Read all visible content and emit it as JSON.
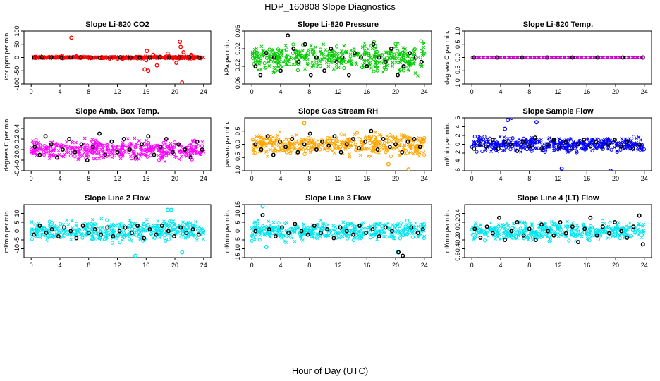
{
  "figure": {
    "title": "HDP_160808  Slope Diagnostics",
    "xlabel": "Hour of Day (UTC)"
  },
  "chart_data": [
    {
      "type": "scatter",
      "title": "Slope Li-820 CO2",
      "ylabel": "Licor ppm per min.",
      "color": "#ff0000",
      "xlim": [
        -1,
        25
      ],
      "ylim": [
        -100,
        100
      ],
      "yticks": [
        -100,
        -50,
        0,
        50,
        100
      ],
      "xticks": [
        0,
        4,
        8,
        12,
        16,
        20,
        24
      ],
      "spread": 0.04,
      "outliers": [
        [
          5.6,
          75
        ],
        [
          15.8,
          -45
        ],
        [
          16.1,
          25
        ],
        [
          16.3,
          -50
        ],
        [
          16.0,
          -10
        ],
        [
          17.0,
          10
        ],
        [
          20.7,
          60
        ],
        [
          20.8,
          40
        ],
        [
          21.0,
          -95
        ],
        [
          21.2,
          20
        ],
        [
          17.5,
          -30
        ],
        [
          19.0,
          15
        ],
        [
          20.2,
          -20
        ],
        [
          22.3,
          10
        ]
      ],
      "black": [
        [
          0.4,
          0
        ],
        [
          1.5,
          1
        ],
        [
          2.8,
          0
        ],
        [
          4.2,
          -1
        ],
        [
          5.5,
          0
        ],
        [
          6.9,
          1
        ],
        [
          8.3,
          0
        ],
        [
          9.6,
          -1
        ],
        [
          11.0,
          0
        ],
        [
          12.4,
          1
        ],
        [
          13.8,
          0
        ],
        [
          15.1,
          -1
        ],
        [
          16.5,
          0
        ],
        [
          17.9,
          1
        ],
        [
          19.2,
          0
        ],
        [
          20.6,
          0
        ],
        [
          22.0,
          1
        ],
        [
          23.4,
          -1
        ]
      ]
    },
    {
      "type": "scatter",
      "title": "Slope Li-820 Pressure",
      "ylabel": "kPa per min.",
      "color": "#00cc00",
      "xlim": [
        -1,
        25
      ],
      "ylim": [
        -0.06,
        0.06
      ],
      "yticks": [
        -0.06,
        -0.02,
        0.02,
        0.06
      ],
      "ytickLabels": [
        "-0.06",
        "-0.02",
        "0.02",
        "0.06"
      ],
      "xticks": [
        0,
        4,
        8,
        12,
        16,
        20,
        24
      ],
      "spread": 0.45,
      "outliers": [],
      "black": [
        [
          0.5,
          -0.02
        ],
        [
          1.2,
          -0.04
        ],
        [
          2.0,
          0.01
        ],
        [
          3.1,
          0.0
        ],
        [
          4.0,
          -0.03
        ],
        [
          5.0,
          0.05
        ],
        [
          5.8,
          0.02
        ],
        [
          6.5,
          -0.01
        ],
        [
          7.4,
          0.03
        ],
        [
          8.2,
          -0.04
        ],
        [
          9.0,
          0.0
        ],
        [
          10.1,
          -0.03
        ],
        [
          11.0,
          0.02
        ],
        [
          11.8,
          -0.01
        ],
        [
          12.6,
          0.0
        ],
        [
          13.5,
          -0.04
        ],
        [
          14.3,
          0.01
        ],
        [
          15.2,
          0.0
        ],
        [
          16.0,
          -0.02
        ],
        [
          16.9,
          0.03
        ],
        [
          17.7,
          0.0
        ],
        [
          18.6,
          -0.01
        ],
        [
          19.4,
          0.02
        ],
        [
          20.3,
          -0.04
        ],
        [
          21.1,
          -0.02
        ],
        [
          22.0,
          0.01
        ],
        [
          22.8,
          0.0
        ],
        [
          23.6,
          -0.01
        ]
      ]
    },
    {
      "type": "scatter",
      "title": "Slope Li-820 Temp.",
      "ylabel": "degrees C per min.",
      "color": "#cc00cc",
      "xlim": [
        -1,
        25
      ],
      "ylim": [
        -1,
        1
      ],
      "yticks": [
        -1,
        -0.5,
        0,
        0.5,
        1
      ],
      "ytickLabels": [
        "-1.0",
        "-0.5",
        "0.0",
        "0.5",
        "1.0"
      ],
      "xticks": [
        0,
        4,
        8,
        12,
        16,
        20,
        24
      ],
      "spread": 0.0,
      "outliers": [],
      "black": [
        [
          0.3,
          0
        ],
        [
          3.5,
          0
        ],
        [
          7.0,
          0
        ],
        [
          10.5,
          0
        ],
        [
          14.0,
          0
        ],
        [
          17.5,
          0
        ],
        [
          21.0,
          0
        ],
        [
          23.8,
          0
        ]
      ]
    },
    {
      "type": "scatter",
      "title": "Slope Amb. Box Temp.",
      "ylabel": "degrees C per min.",
      "color": "#ff00ff",
      "xlim": [
        -1,
        25
      ],
      "ylim": [
        -0.4,
        0.6
      ],
      "yticks": [
        -0.4,
        -0.2,
        0.0,
        0.2,
        0.4
      ],
      "ytickLabels": [
        "-0.4",
        "-0.2",
        "0.0",
        "0.2",
        "0.4"
      ],
      "xticks": [
        0,
        4,
        8,
        12,
        16,
        20,
        24
      ],
      "spread": 0.33,
      "outliers": [],
      "black": [
        [
          0.5,
          0.05
        ],
        [
          1.2,
          -0.1
        ],
        [
          2.0,
          0.25
        ],
        [
          2.8,
          0.1
        ],
        [
          3.6,
          -0.15
        ],
        [
          4.4,
          0.0
        ],
        [
          5.3,
          0.2
        ],
        [
          6.1,
          -0.05
        ],
        [
          7.0,
          0.1
        ],
        [
          7.8,
          -0.2
        ],
        [
          8.6,
          0.05
        ],
        [
          9.5,
          0.3
        ],
        [
          10.3,
          -0.1
        ],
        [
          11.2,
          0.15
        ],
        [
          12.0,
          -0.05
        ],
        [
          12.9,
          0.2
        ],
        [
          13.7,
          0.0
        ],
        [
          14.6,
          -0.15
        ],
        [
          15.4,
          0.1
        ],
        [
          16.3,
          0.25
        ],
        [
          17.1,
          -0.1
        ],
        [
          18.0,
          0.05
        ],
        [
          18.8,
          0.2
        ],
        [
          19.7,
          -0.05
        ],
        [
          20.5,
          0.1
        ],
        [
          21.4,
          0.0
        ],
        [
          22.2,
          -0.15
        ],
        [
          23.1,
          0.15
        ],
        [
          23.8,
          0.0
        ]
      ]
    },
    {
      "type": "scatter",
      "title": "Slope Gas Stream RH",
      "ylabel": "percent per min.",
      "color": "#ffa500",
      "xlim": [
        -1,
        25
      ],
      "ylim": [
        -1.0,
        1.0
      ],
      "yticks": [
        -1.0,
        -0.5,
        0.0,
        0.5
      ],
      "ytickLabels": [
        "-1.0",
        "-0.5",
        "0.0",
        "0.5"
      ],
      "xticks": [
        0,
        4,
        8,
        12,
        16,
        20,
        24
      ],
      "spread": 0.35,
      "outliers": [
        [
          21.8,
          -0.95
        ],
        [
          19.0,
          -0.75
        ],
        [
          7.3,
          0.8
        ]
      ],
      "black": [
        [
          0.5,
          0.0
        ],
        [
          1.3,
          -0.2
        ],
        [
          2.2,
          0.3
        ],
        [
          3.0,
          -0.4
        ],
        [
          3.9,
          0.1
        ],
        [
          4.7,
          -0.1
        ],
        [
          5.6,
          0.2
        ],
        [
          6.4,
          -0.3
        ],
        [
          7.3,
          0.0
        ],
        [
          8.1,
          0.4
        ],
        [
          9.0,
          -0.2
        ],
        [
          9.8,
          0.1
        ],
        [
          10.7,
          -0.05
        ],
        [
          11.5,
          0.3
        ],
        [
          12.4,
          -0.3
        ],
        [
          13.2,
          0.0
        ],
        [
          14.1,
          0.2
        ],
        [
          14.9,
          -0.15
        ],
        [
          15.8,
          0.1
        ],
        [
          16.6,
          0.5
        ],
        [
          17.5,
          -0.2
        ],
        [
          18.3,
          0.2
        ],
        [
          19.2,
          -0.1
        ],
        [
          20.0,
          0.0
        ],
        [
          20.9,
          -0.3
        ],
        [
          21.7,
          0.1
        ],
        [
          22.6,
          0.2
        ],
        [
          23.4,
          -0.1
        ]
      ]
    },
    {
      "type": "scatter",
      "title": "Slope Sample Flow",
      "ylabel": "ml/min per min.",
      "color": "#0000ff",
      "xlim": [
        -1,
        25
      ],
      "ylim": [
        -6,
        6
      ],
      "yticks": [
        -6,
        -4,
        -2,
        0,
        2,
        4,
        6
      ],
      "ytickLabels": [
        "-6",
        "-4",
        "-2",
        "0",
        "2",
        "4",
        "6"
      ],
      "xticks": [
        0,
        4,
        8,
        12,
        16,
        20,
        24
      ],
      "spread": 0.22,
      "outliers": [
        [
          5.0,
          5.5
        ],
        [
          5.5,
          6.0
        ],
        [
          4.6,
          3.5
        ],
        [
          12.5,
          -5.5
        ],
        [
          19.3,
          -6.0
        ],
        [
          9.0,
          5.0
        ]
      ],
      "black": [
        [
          0.3,
          -1
        ],
        [
          1.2,
          0
        ],
        [
          2.0,
          -0.5
        ],
        [
          2.9,
          1
        ],
        [
          3.7,
          -1
        ],
        [
          4.6,
          0.5
        ],
        [
          5.4,
          0
        ],
        [
          6.3,
          -1.5
        ],
        [
          7.1,
          0.5
        ],
        [
          8.0,
          -0.5
        ],
        [
          8.8,
          1.5
        ],
        [
          9.7,
          -1
        ],
        [
          10.5,
          0
        ],
        [
          11.4,
          1
        ],
        [
          12.2,
          -0.5
        ],
        [
          13.1,
          0.5
        ],
        [
          13.9,
          -1
        ],
        [
          14.8,
          0
        ],
        [
          15.6,
          1
        ],
        [
          16.5,
          -0.5
        ],
        [
          17.3,
          0.5
        ],
        [
          18.2,
          -1
        ],
        [
          19.0,
          0
        ],
        [
          19.9,
          1
        ],
        [
          20.7,
          -0.5
        ],
        [
          21.6,
          0.5
        ],
        [
          22.4,
          -1
        ],
        [
          23.3,
          0
        ]
      ]
    },
    {
      "type": "scatter",
      "title": "Slope Line 2 Flow",
      "ylabel": "ml/min per min.",
      "color": "#00e5ee",
      "xlim": [
        -1,
        25
      ],
      "ylim": [
        -15,
        15
      ],
      "yticks": [
        -10,
        -5,
        0,
        5,
        10
      ],
      "ytickLabels": [
        "-10",
        "-5",
        "0",
        "5",
        "10"
      ],
      "xticks": [
        0,
        4,
        8,
        12,
        16,
        20,
        24
      ],
      "spread": 0.32,
      "outliers": [
        [
          19.0,
          12
        ],
        [
          19.5,
          12
        ],
        [
          14.5,
          -14
        ],
        [
          21.0,
          -12
        ]
      ],
      "black": [
        [
          0.4,
          -2
        ],
        [
          1.2,
          3
        ],
        [
          2.1,
          -1
        ],
        [
          2.9,
          1
        ],
        [
          3.8,
          -3
        ],
        [
          4.6,
          2
        ],
        [
          5.5,
          0
        ],
        [
          6.3,
          -4
        ],
        [
          7.2,
          3
        ],
        [
          8.0,
          -1
        ],
        [
          8.9,
          1
        ],
        [
          9.7,
          -2
        ],
        [
          10.6,
          2
        ],
        [
          11.4,
          -3
        ],
        [
          12.3,
          0
        ],
        [
          13.1,
          2
        ],
        [
          14.0,
          -1
        ],
        [
          14.8,
          3
        ],
        [
          15.7,
          -4
        ],
        [
          16.5,
          1
        ],
        [
          17.4,
          -2
        ],
        [
          18.2,
          3
        ],
        [
          19.1,
          0
        ],
        [
          19.9,
          -3
        ],
        [
          20.8,
          2
        ],
        [
          21.6,
          -1
        ],
        [
          22.5,
          1
        ],
        [
          23.3,
          -2
        ]
      ]
    },
    {
      "type": "scatter",
      "title": "Slope Line 3 Flow",
      "ylabel": "ml/min per min.",
      "color": "#00e5ee",
      "xlim": [
        -1,
        25
      ],
      "ylim": [
        -15,
        15
      ],
      "yticks": [
        -15,
        -10,
        -5,
        0,
        5,
        10,
        15
      ],
      "ytickLabels": [
        "-15",
        "-10",
        "-5",
        "0",
        "5",
        "10",
        "15"
      ],
      "xticks": [
        0,
        4,
        8,
        12,
        16,
        20,
        24
      ],
      "spread": 0.28,
      "outliers": [
        [
          1.5,
          14
        ],
        [
          2.0,
          -9
        ],
        [
          20.3,
          -12
        ],
        [
          21.0,
          -14
        ]
      ],
      "black": [
        [
          0.5,
          0
        ],
        [
          1.5,
          9
        ],
        [
          2.4,
          1
        ],
        [
          3.3,
          -3
        ],
        [
          4.2,
          2
        ],
        [
          5.1,
          -1
        ],
        [
          6.0,
          4
        ],
        [
          6.9,
          0
        ],
        [
          7.8,
          -2
        ],
        [
          8.7,
          3
        ],
        [
          9.6,
          -1
        ],
        [
          10.5,
          1
        ],
        [
          11.4,
          -4
        ],
        [
          12.3,
          2
        ],
        [
          13.2,
          0
        ],
        [
          14.1,
          -2
        ],
        [
          15.0,
          3
        ],
        [
          15.9,
          -1
        ],
        [
          16.8,
          1
        ],
        [
          17.7,
          -3
        ],
        [
          18.6,
          2
        ],
        [
          19.5,
          0
        ],
        [
          20.4,
          -12
        ],
        [
          21.0,
          -14
        ],
        [
          22.2,
          2
        ],
        [
          23.1,
          -1
        ],
        [
          23.8,
          1
        ]
      ]
    },
    {
      "type": "scatter",
      "title": "Slope Line 4 (LT) Flow",
      "ylabel": "ml/min per min.",
      "color": "#00e5ee",
      "xlim": [
        -1,
        25
      ],
      "ylim": [
        -0.6,
        0.6
      ],
      "yticks": [
        -0.6,
        -0.4,
        -0.2,
        0.0,
        0.2,
        0.4
      ],
      "ytickLabels": [
        "-0.6",
        "-0.4",
        "-0.2",
        "0.0",
        "0.2",
        "0.4"
      ],
      "xticks": [
        0,
        4,
        8,
        12,
        16,
        20,
        24
      ],
      "spread": 0.28,
      "outliers": [],
      "black": [
        [
          0.4,
          0.05
        ],
        [
          1.2,
          -0.15
        ],
        [
          2.1,
          0.1
        ],
        [
          2.9,
          -0.05
        ],
        [
          3.8,
          0.3
        ],
        [
          4.6,
          -0.2
        ],
        [
          5.5,
          0.0
        ],
        [
          6.3,
          0.2
        ],
        [
          7.2,
          -0.1
        ],
        [
          8.0,
          0.05
        ],
        [
          8.9,
          -0.2
        ],
        [
          9.7,
          0.15
        ],
        [
          10.6,
          0.0
        ],
        [
          11.4,
          -0.1
        ],
        [
          12.3,
          0.2
        ],
        [
          13.1,
          -0.05
        ],
        [
          14.0,
          0.1
        ],
        [
          14.8,
          -0.25
        ],
        [
          15.7,
          0.05
        ],
        [
          16.5,
          0.3
        ],
        [
          17.4,
          -0.1
        ],
        [
          18.2,
          0.1
        ],
        [
          19.1,
          -0.05
        ],
        [
          19.9,
          0.2
        ],
        [
          20.8,
          0.0
        ],
        [
          21.6,
          -0.15
        ],
        [
          22.5,
          0.1
        ],
        [
          23.3,
          0.35
        ],
        [
          23.8,
          -0.3
        ]
      ]
    }
  ]
}
